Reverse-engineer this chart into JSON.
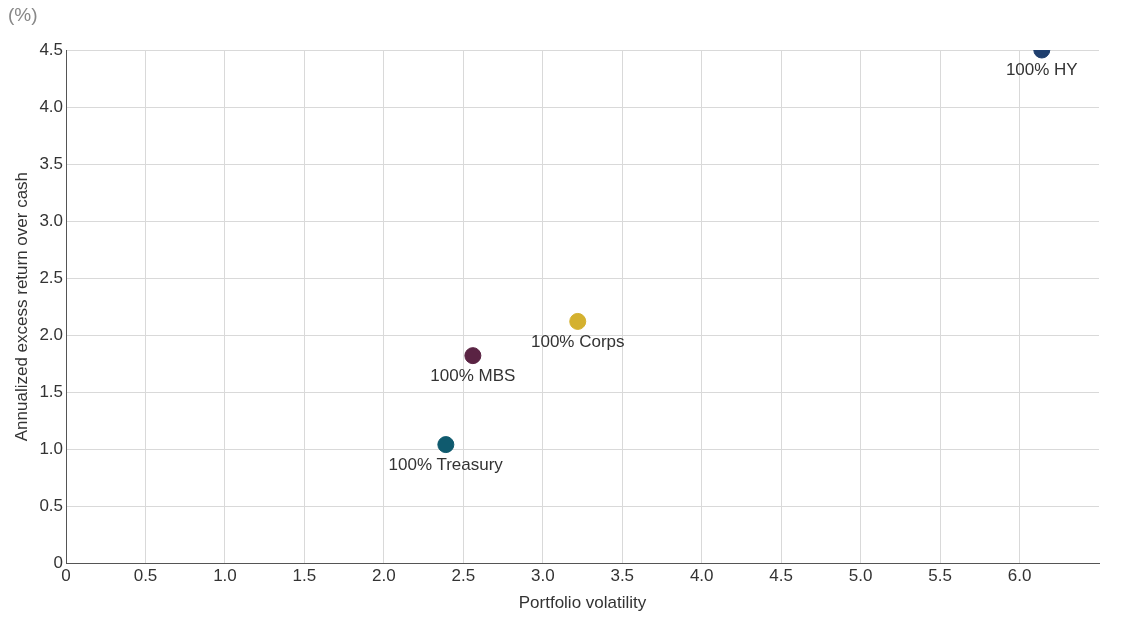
{
  "chart_data": {
    "type": "scatter",
    "xlabel": "Portfolio volatility",
    "ylabel": "Annualized excess return over cash",
    "annotations": [
      "(%)"
    ],
    "series": [
      {
        "name": "100% Treasury",
        "color": "#0f5a6e",
        "x": [
          2.39
        ],
        "values": [
          1.04
        ]
      },
      {
        "name": "100% MBS",
        "color": "#5a2343",
        "x": [
          2.56
        ],
        "values": [
          1.82
        ]
      },
      {
        "name": "100% Corps",
        "color": "#d4b12f",
        "x": [
          3.22
        ],
        "values": [
          2.12
        ]
      },
      {
        "name": "100% HY",
        "color": "#1f3f6e",
        "x": [
          6.14
        ],
        "values": [
          4.5
        ]
      }
    ],
    "xlim": [
      0,
      6.5
    ],
    "xticks": [
      0,
      {
        "value": 0.5,
        "label": "0.5"
      },
      {
        "value": 1,
        "label": "1.0"
      },
      {
        "value": 1.5,
        "label": "1.5"
      },
      {
        "value": 2,
        "label": "2.0"
      },
      {
        "value": 2.5,
        "label": "2.5"
      },
      {
        "value": 3,
        "label": "3.0"
      },
      {
        "value": 3.5,
        "label": "3.5"
      },
      {
        "value": 4,
        "label": "4.0"
      },
      {
        "value": 4.5,
        "label": "4.5"
      },
      {
        "value": 5,
        "label": "5.0"
      },
      {
        "value": 5.5,
        "label": "5.5"
      },
      {
        "value": 6,
        "label": "6.0"
      }
    ],
    "ylim": [
      0,
      4.5
    ],
    "yticks": [
      0,
      {
        "value": 0.5,
        "label": "0.5"
      },
      {
        "value": 1,
        "label": "1.0"
      },
      {
        "value": 1.5,
        "label": "1.5"
      },
      {
        "value": 2,
        "label": "2.0"
      },
      {
        "value": 2.5,
        "label": "2.5"
      },
      {
        "value": 3,
        "label": "3.0"
      },
      {
        "value": 3.5,
        "label": "3.5"
      },
      {
        "value": 4,
        "label": "4.0"
      },
      {
        "value": 4.5,
        "label": "4.5"
      }
    ],
    "grid": true,
    "legend": false,
    "marker": "circle"
  }
}
